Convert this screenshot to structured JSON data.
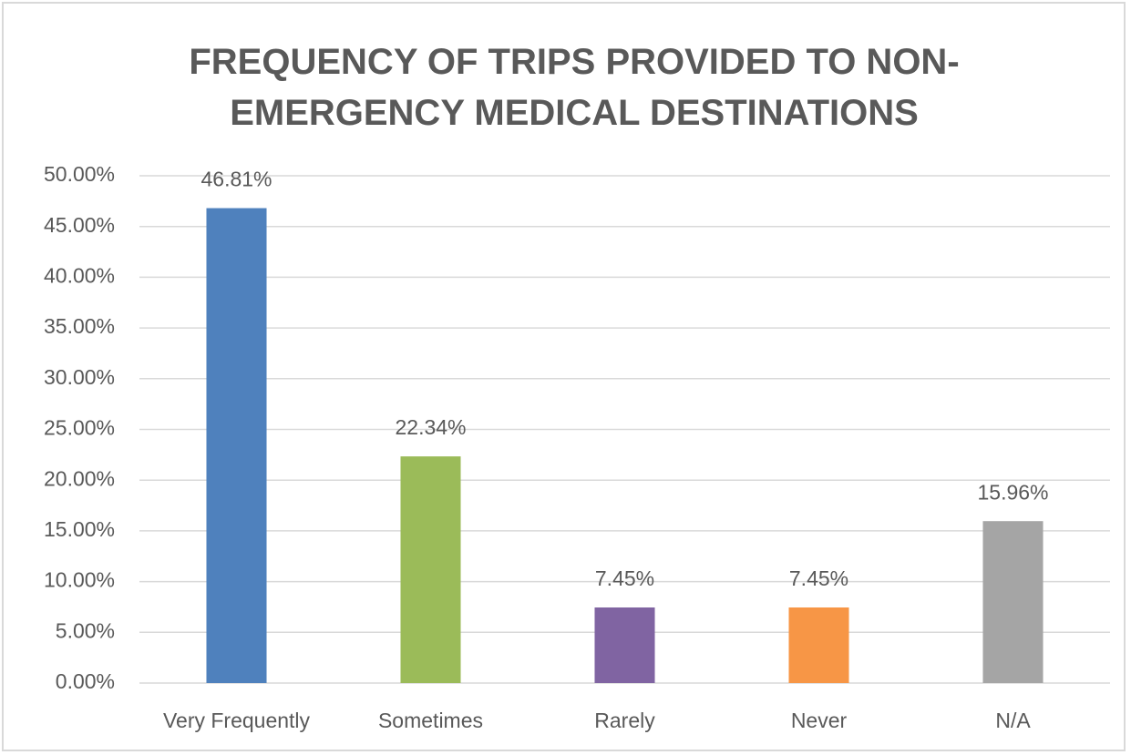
{
  "chart_data": {
    "type": "bar",
    "title": "FREQUENCY OF TRIPS PROVIDED TO NON-EMERGENCY MEDICAL DESTINATIONS",
    "categories": [
      "Very Frequently",
      "Sometimes",
      "Rarely",
      "Never",
      "N/A"
    ],
    "values": [
      46.81,
      22.34,
      7.45,
      7.45,
      15.96
    ],
    "value_labels": [
      "46.81%",
      "22.34%",
      "7.45%",
      "7.45%",
      "15.96%"
    ],
    "colors": [
      "#4f81bd",
      "#9bbb59",
      "#8064a2",
      "#f79646",
      "#a5a5a5"
    ],
    "ylim": [
      0,
      50
    ],
    "yticks": [
      {
        "value": 0,
        "label": "0.00%"
      },
      {
        "value": 5,
        "label": "5.00%"
      },
      {
        "value": 10,
        "label": "10.00%"
      },
      {
        "value": 15,
        "label": "15.00%"
      },
      {
        "value": 20,
        "label": "20.00%"
      },
      {
        "value": 25,
        "label": "25.00%"
      },
      {
        "value": 30,
        "label": "30.00%"
      },
      {
        "value": 35,
        "label": "35.00%"
      },
      {
        "value": 40,
        "label": "40.00%"
      },
      {
        "value": 45,
        "label": "45.00%"
      },
      {
        "value": 50,
        "label": "50.00%"
      }
    ],
    "grid": true
  }
}
